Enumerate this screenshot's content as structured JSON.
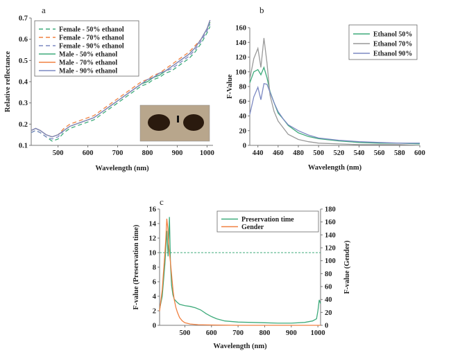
{
  "figure": {
    "panels": [
      "a",
      "b",
      "c"
    ]
  },
  "chart_data": [
    {
      "panel": "a",
      "type": "line",
      "xlabel": "Wavelength (nm)",
      "ylabel": "Relative reflectance",
      "xlim": [
        410,
        1020
      ],
      "ylim": [
        0.1,
        0.7
      ],
      "xticks": [
        500,
        600,
        700,
        800,
        900,
        1000
      ],
      "yticks": [
        0.1,
        0.2,
        0.3,
        0.4,
        0.5,
        0.6,
        0.7
      ],
      "grid": false,
      "legend": "top-left",
      "inset_image": "specimen-photo",
      "x": [
        410,
        425,
        440,
        460,
        480,
        500,
        520,
        540,
        560,
        580,
        600,
        620,
        640,
        660,
        680,
        700,
        720,
        740,
        760,
        780,
        800,
        820,
        840,
        860,
        880,
        900,
        920,
        940,
        960,
        980,
        1000,
        1010
      ],
      "series": [
        {
          "name": "Female - 50% ethanol",
          "color": "#3daa7a",
          "dash": "6,4",
          "values": [
            0.16,
            0.17,
            0.16,
            0.14,
            0.12,
            0.13,
            0.16,
            0.18,
            0.19,
            0.2,
            0.21,
            0.22,
            0.24,
            0.26,
            0.28,
            0.3,
            0.32,
            0.34,
            0.36,
            0.38,
            0.39,
            0.41,
            0.42,
            0.44,
            0.45,
            0.47,
            0.49,
            0.51,
            0.54,
            0.58,
            0.63,
            0.66
          ]
        },
        {
          "name": "Female - 70% ethanol",
          "color": "#f08040",
          "dash": "6,4",
          "values": [
            0.17,
            0.18,
            0.17,
            0.15,
            0.14,
            0.15,
            0.18,
            0.2,
            0.21,
            0.22,
            0.23,
            0.24,
            0.26,
            0.28,
            0.3,
            0.32,
            0.34,
            0.36,
            0.38,
            0.4,
            0.41,
            0.43,
            0.44,
            0.46,
            0.48,
            0.5,
            0.52,
            0.54,
            0.57,
            0.6,
            0.65,
            0.68
          ]
        },
        {
          "name": "Female - 90% ethanol",
          "color": "#7b88c2",
          "dash": "6,4",
          "values": [
            0.16,
            0.17,
            0.16,
            0.14,
            0.13,
            0.14,
            0.17,
            0.19,
            0.2,
            0.21,
            0.22,
            0.23,
            0.25,
            0.27,
            0.29,
            0.31,
            0.33,
            0.35,
            0.37,
            0.39,
            0.4,
            0.42,
            0.43,
            0.45,
            0.46,
            0.48,
            0.5,
            0.52,
            0.55,
            0.59,
            0.64,
            0.67
          ]
        },
        {
          "name": "Male - 50% ethanol",
          "color": "#3daa7a",
          "dash": "",
          "values": [
            0.17,
            0.18,
            0.17,
            0.15,
            0.14,
            0.15,
            0.17,
            0.19,
            0.2,
            0.21,
            0.22,
            0.23,
            0.25,
            0.27,
            0.29,
            0.31,
            0.33,
            0.35,
            0.37,
            0.39,
            0.4,
            0.42,
            0.43,
            0.45,
            0.47,
            0.49,
            0.51,
            0.53,
            0.56,
            0.6,
            0.65,
            0.68
          ]
        },
        {
          "name": "Male - 70% ethanol",
          "color": "#f08040",
          "dash": "",
          "values": [
            0.17,
            0.18,
            0.17,
            0.15,
            0.14,
            0.15,
            0.17,
            0.19,
            0.2,
            0.21,
            0.22,
            0.23,
            0.25,
            0.27,
            0.29,
            0.31,
            0.33,
            0.35,
            0.37,
            0.39,
            0.41,
            0.42,
            0.44,
            0.45,
            0.47,
            0.49,
            0.51,
            0.53,
            0.56,
            0.6,
            0.65,
            0.69
          ]
        },
        {
          "name": "Male - 90% ethanol",
          "color": "#7b88c2",
          "dash": "",
          "values": [
            0.17,
            0.18,
            0.17,
            0.15,
            0.14,
            0.15,
            0.17,
            0.19,
            0.2,
            0.21,
            0.22,
            0.23,
            0.25,
            0.27,
            0.29,
            0.31,
            0.33,
            0.35,
            0.37,
            0.39,
            0.41,
            0.42,
            0.44,
            0.45,
            0.47,
            0.49,
            0.51,
            0.53,
            0.56,
            0.6,
            0.65,
            0.69
          ]
        }
      ]
    },
    {
      "panel": "b",
      "type": "line",
      "xlabel": "Wavelength (nm)",
      "ylabel": "F-Value",
      "xlim": [
        432,
        600
      ],
      "ylim": [
        0,
        160
      ],
      "xticks": [
        440,
        460,
        480,
        500,
        520,
        540,
        560,
        580,
        600
      ],
      "yticks": [
        0,
        20,
        40,
        60,
        80,
        100,
        120,
        140,
        160
      ],
      "grid": false,
      "legend": "top-right",
      "x": [
        432,
        436,
        440,
        443,
        446,
        449,
        452,
        456,
        460,
        465,
        470,
        480,
        490,
        500,
        520,
        540,
        560,
        580,
        600
      ],
      "series": [
        {
          "name": "Ethanol 50%",
          "color": "#3daa7a",
          "values": [
            85,
            100,
            103,
            96,
            106,
            92,
            73,
            58,
            44,
            36,
            27,
            17,
            12,
            9,
            6,
            4,
            3,
            3,
            2
          ]
        },
        {
          "name": "Ethanol 70%",
          "color": "#999999",
          "values": [
            90,
            118,
            132,
            106,
            146,
            112,
            68,
            46,
            33,
            24,
            15,
            8,
            5,
            3,
            2,
            1,
            1,
            1,
            0
          ]
        },
        {
          "name": "Ethanol 90%",
          "color": "#7b88c2",
          "values": [
            42,
            66,
            79,
            62,
            84,
            83,
            72,
            58,
            46,
            36,
            28,
            20,
            14,
            10,
            7,
            5,
            4,
            3,
            3
          ]
        }
      ]
    },
    {
      "panel": "c",
      "type": "line",
      "xlabel": "Wavelength (nm)",
      "ylabel": "F-value (Preservation time)",
      "y2label": "F-value (Gender)",
      "xlim": [
        405,
        1010
      ],
      "ylim": [
        0,
        16
      ],
      "y2lim": [
        0,
        180
      ],
      "xticks": [
        500,
        600,
        700,
        800,
        900,
        1000
      ],
      "yticks": [
        0,
        2,
        4,
        6,
        8,
        10,
        12,
        14,
        16
      ],
      "y2ticks": [
        0,
        20,
        40,
        60,
        80,
        100,
        120,
        140,
        160,
        180
      ],
      "grid": false,
      "legend": "top-right",
      "reference_line": {
        "axis": "left",
        "value": 10
      },
      "series": [
        {
          "name": "Preservation time",
          "color": "#3daa7a",
          "axis": "left",
          "x": [
            405,
            415,
            425,
            432,
            437,
            442,
            446,
            450,
            455,
            460,
            470,
            480,
            490,
            500,
            520,
            540,
            560,
            580,
            600,
            620,
            650,
            700,
            750,
            800,
            850,
            900,
            950,
            980,
            995,
            1000,
            1005,
            1010
          ],
          "values": [
            2.2,
            4.0,
            8.5,
            13.0,
            9.5,
            14.9,
            8.5,
            5.5,
            4.2,
            3.6,
            3.2,
            2.9,
            2.8,
            2.7,
            2.6,
            2.4,
            2.1,
            1.6,
            1.2,
            0.9,
            0.6,
            0.45,
            0.4,
            0.35,
            0.3,
            0.3,
            0.4,
            0.6,
            0.9,
            2.0,
            3.5,
            3.0
          ]
        },
        {
          "name": "Gender",
          "color": "#f08040",
          "axis": "right",
          "x": [
            405,
            415,
            422,
            428,
            432,
            436,
            440,
            444,
            448,
            452,
            456,
            460,
            466,
            472,
            480,
            490,
            500,
            520,
            550,
            600,
            700,
            800,
            900,
            1010
          ],
          "values": [
            22,
            55,
            95,
            130,
            165,
            150,
            120,
            105,
            88,
            70,
            52,
            40,
            28,
            20,
            12,
            7,
            4,
            2,
            1,
            0.5,
            0,
            0,
            0,
            0
          ]
        }
      ]
    }
  ]
}
